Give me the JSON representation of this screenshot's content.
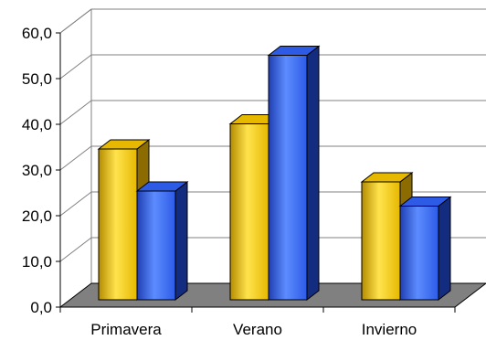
{
  "chart_data": {
    "type": "bar",
    "categories": [
      "Primavera",
      "Verano",
      "Invierno"
    ],
    "series": [
      {
        "values": [
          33.0,
          38.5,
          25.8
        ],
        "color": "#FFCC00"
      },
      {
        "values": [
          23.8,
          53.5,
          20.5
        ],
        "color": "#3366FF"
      }
    ],
    "y_ticks": [
      "0,0",
      "10,0",
      "20,0",
      "30,0",
      "40,0",
      "50,0",
      "60,0"
    ],
    "ylim": [
      0,
      60
    ],
    "grid": true,
    "style": "3d-clustered-bar"
  }
}
